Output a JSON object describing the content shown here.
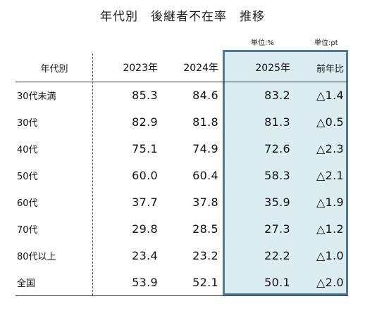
{
  "title": "年代別　後継者不在率　推移",
  "units": {
    "percent": "単位:%",
    "point": "単位:pt"
  },
  "chart_data": {
    "type": "table",
    "title": "年代別　後継者不在率　推移",
    "columns": [
      "年代別",
      "2023年",
      "2024年",
      "2025年",
      "前年比"
    ],
    "highlighted_columns": [
      "2025年",
      "前年比"
    ],
    "rows": [
      {
        "label": "30代未満",
        "y2023": "85.3",
        "y2024": "84.6",
        "y2025": "83.2",
        "yoy": "△1.4"
      },
      {
        "label": "30代",
        "y2023": "82.9",
        "y2024": "81.8",
        "y2025": "81.3",
        "yoy": "△0.5"
      },
      {
        "label": "40代",
        "y2023": "75.1",
        "y2024": "74.9",
        "y2025": "72.6",
        "yoy": "△2.3"
      },
      {
        "label": "50代",
        "y2023": "60.0",
        "y2024": "60.4",
        "y2025": "58.3",
        "yoy": "△2.1"
      },
      {
        "label": "60代",
        "y2023": "37.7",
        "y2024": "37.8",
        "y2025": "35.9",
        "yoy": "△1.9"
      },
      {
        "label": "70代",
        "y2023": "29.8",
        "y2024": "28.5",
        "y2025": "27.3",
        "yoy": "△1.2"
      },
      {
        "label": "80代以上",
        "y2023": "23.4",
        "y2024": "23.2",
        "y2025": "22.2",
        "yoy": "△1.0"
      },
      {
        "label": "全国",
        "y2023": "53.9",
        "y2024": "52.1",
        "y2025": "50.1",
        "yoy": "△2.0"
      }
    ]
  },
  "colors": {
    "highlight_fill": "#dcedf1",
    "highlight_border": "#4f7a99"
  }
}
